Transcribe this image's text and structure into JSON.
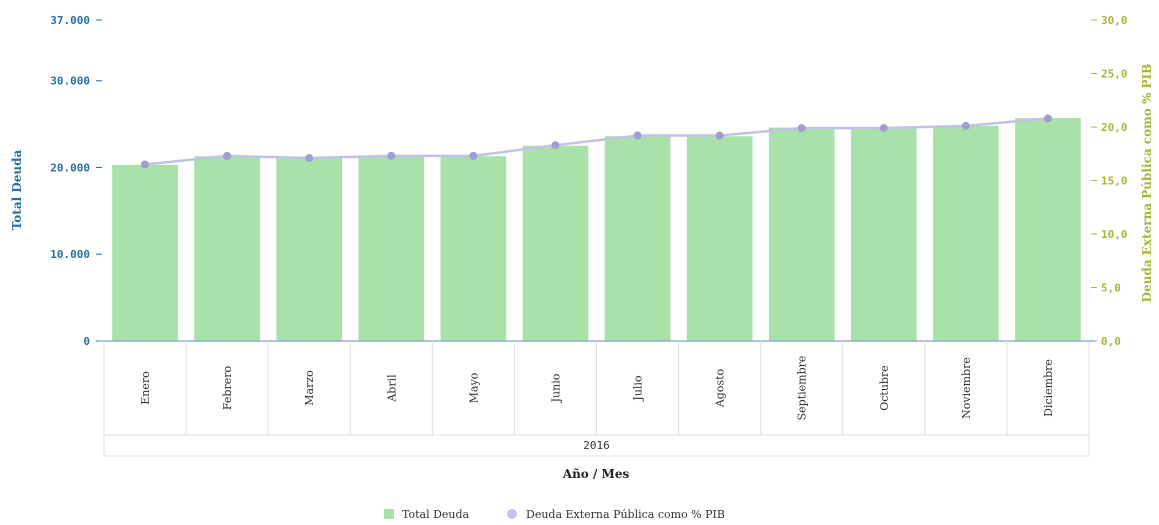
{
  "chart_data": {
    "type": "bar",
    "categories": [
      "Enero",
      "Febrero",
      "Marzo",
      "Abril",
      "Mayo",
      "Junio",
      "Julio",
      "Agosto",
      "Septiembre",
      "Octubre",
      "Noviembre",
      "Diciembre"
    ],
    "group_label": "2016",
    "series": [
      {
        "name": "Total Deuda",
        "type": "bar",
        "axis": "left",
        "color": "#a8e2a8",
        "values": [
          20300,
          21300,
          21100,
          21300,
          21300,
          22500,
          23600,
          23600,
          24600,
          24600,
          24800,
          25700
        ]
      },
      {
        "name": "Deuda Externa Pública como % PIB",
        "type": "line",
        "axis": "right",
        "color": "#c2c2e6",
        "marker_color": "#9e9ecf",
        "values": [
          16.5,
          17.3,
          17.1,
          17.3,
          17.3,
          18.3,
          19.2,
          19.2,
          19.9,
          19.9,
          20.1,
          20.8
        ]
      }
    ],
    "xlabel": "Año / Mes",
    "ylabel_left": "Total Deuda",
    "ylabel_right": "Deuda Externa Pública como % PIB",
    "ylim_left": [
      0,
      37000
    ],
    "ylim_right": [
      0,
      30
    ],
    "yticks_left": [
      "0",
      "10.000",
      "20.000",
      "30.000",
      "37.000"
    ],
    "ytick_values_left": [
      0,
      10000,
      20000,
      30000,
      37000
    ],
    "yticks_right": [
      "0,0",
      "5,0",
      "10,0",
      "15,0",
      "20,0",
      "25,0",
      "30,0"
    ],
    "ytick_values_right": [
      0,
      5,
      10,
      15,
      20,
      25,
      30
    ],
    "left_axis_color": "#2b6f9e",
    "right_axis_color": "#a9b43a",
    "grid": false,
    "legend_position": "bottom"
  }
}
